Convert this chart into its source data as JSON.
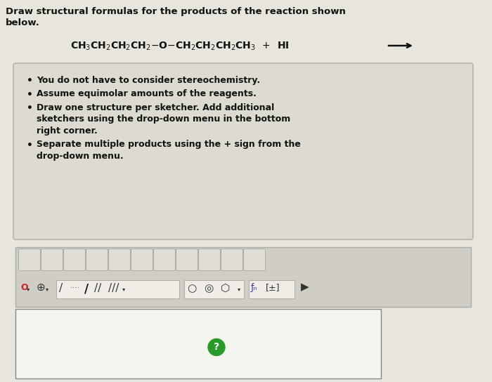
{
  "bg_color": "#cac8c0",
  "content_bg": "#e8e5dc",
  "title_line1": "Draw structural formulas for the products of the reaction shown",
  "title_line2": "below.",
  "title_fontsize": 9.5,
  "title_color": "#111111",
  "equation_fontsize": 10,
  "equation_color": "#111111",
  "box_bg": "#dddad0",
  "box_border": "#aaaaaa",
  "bullet_points": [
    "You do not have to consider stereochemistry.",
    "Assume equimolar amounts of the reagents.",
    "Draw one structure per sketcher. Add additional\nsketchers using the drop-down menu in the bottom\nright corner.",
    "Separate multiple products using the + sign from the\ndrop-down menu."
  ],
  "bullet_fontsize": 9.0,
  "bullet_color": "#111111",
  "toolbar_bg": "#d0cdc4",
  "toolbar_border": "#aaaaaa",
  "sketcher_bg": "#f5f5f0",
  "sketcher_border": "#888888",
  "green_circle_color": "#2a9a2a",
  "arrow_color": "#111111"
}
